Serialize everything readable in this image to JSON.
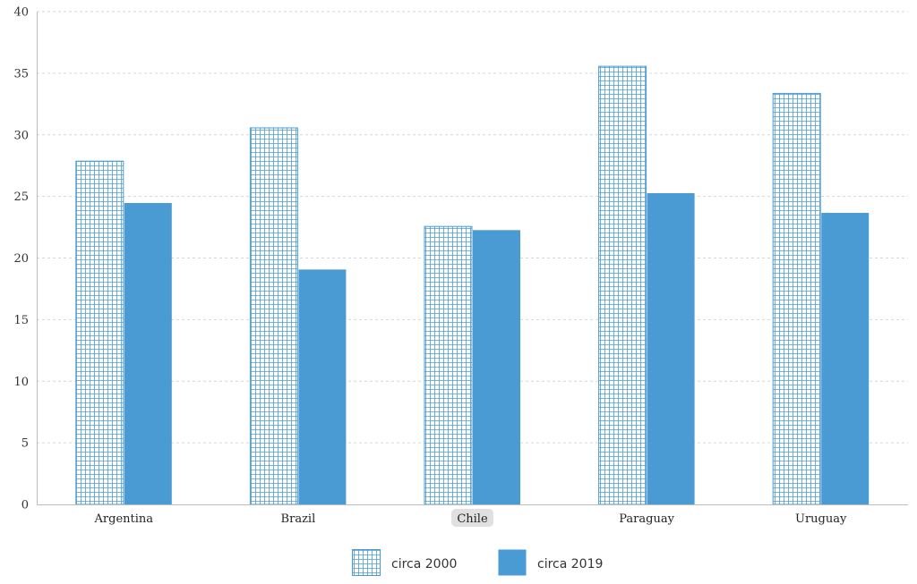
{
  "chart_data": {
    "type": "bar",
    "categories": [
      "Argentina",
      "Brazil",
      "Chile",
      "Paraguay",
      "Uruguay"
    ],
    "highlighted_category": "Chile",
    "series": [
      {
        "name": "circa 2000",
        "values": [
          27.9,
          30.6,
          22.6,
          35.6,
          33.4
        ],
        "color": "#4a9bd4",
        "pattern": "grid"
      },
      {
        "name": "circa 2019",
        "values": [
          24.5,
          19.1,
          22.3,
          25.3,
          23.7
        ],
        "color": "#4a9bd4",
        "pattern": "solid"
      }
    ],
    "ylim": [
      0,
      40
    ],
    "yticks": [
      0,
      5,
      10,
      15,
      20,
      25,
      30,
      35,
      40
    ],
    "grid": true,
    "legend_position": "bottom-center",
    "title": "",
    "xlabel": "",
    "ylabel": ""
  }
}
